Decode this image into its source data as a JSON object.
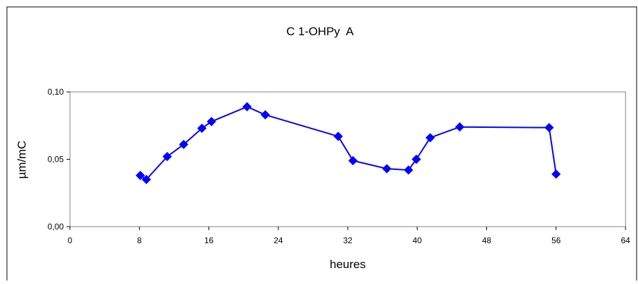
{
  "chart_data": {
    "type": "line",
    "title": "C 1-OHPy  A",
    "xlabel": "heures",
    "ylabel": "µm/mC",
    "xlim": [
      0,
      64
    ],
    "ylim": [
      0,
      0.1
    ],
    "x_ticks": [
      0,
      8,
      16,
      24,
      32,
      40,
      48,
      56,
      64
    ],
    "x_tick_labels": [
      "0",
      "8",
      "16",
      "24",
      "32",
      "40",
      "48",
      "56",
      "64"
    ],
    "y_ticks": [
      0,
      0.05,
      0.1
    ],
    "y_tick_labels": [
      "0,00",
      "0,05",
      "0,10"
    ],
    "grid": false,
    "legend": "none",
    "series": [
      {
        "color": "#0000ff",
        "marker": "diamond",
        "x": [
          8.1,
          8.8,
          11.2,
          13.1,
          15.2,
          16.3,
          20.4,
          22.5,
          30.9,
          32.6,
          36.5,
          39.0,
          39.9,
          41.5,
          44.9,
          55.2,
          56.0
        ],
        "y": [
          0.038,
          0.035,
          0.052,
          0.061,
          0.073,
          0.078,
          0.089,
          0.083,
          0.067,
          0.049,
          0.043,
          0.042,
          0.05,
          0.066,
          0.074,
          0.0735,
          0.039
        ]
      }
    ]
  }
}
